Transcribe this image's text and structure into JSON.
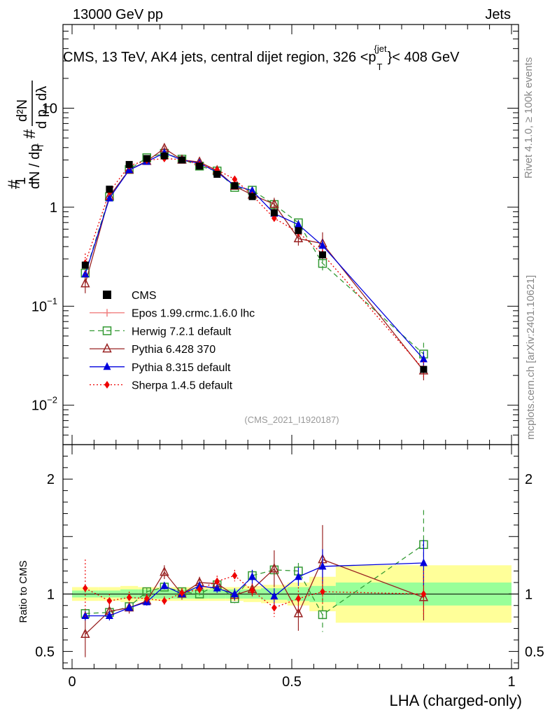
{
  "header": {
    "left": "13000 GeV pp",
    "right": "Jets",
    "title": "CMS, 13 TeV, AK4 jets, central dijet region, 326 <p",
    "title_sub": "T",
    "title_sup": "{jet",
    "title_end": "}< 408 GeV",
    "side_top": "Rivet 4.1.0, ≥ 100k events",
    "side_bottom": "mcplots.cern.ch [arXiv:2401.10621]",
    "analysis": "(CMS_2021_I1920187)"
  },
  "chart_data": {
    "type": "line",
    "xlabel": "LHA (charged-only)",
    "ylabel": "1/dN/dp_T # d²N/(dp_T dλ)",
    "ratio_ylabel": "Ratio to CMS",
    "xlim": [
      0,
      1
    ],
    "ylim": [
      0.004,
      70
    ],
    "ratio_ylim": [
      0.35,
      2.3
    ],
    "x_ticks": [
      {
        "v": 0,
        "label": "0"
      },
      {
        "v": 0.5,
        "label": "0.5"
      },
      {
        "v": 1,
        "label": "1"
      }
    ],
    "y_ticks": [
      {
        "v": 0.01,
        "base": "10",
        "exp": "−2"
      },
      {
        "v": 0.1,
        "base": "10",
        "exp": "−1"
      },
      {
        "v": 1,
        "base": "1",
        "exp": ""
      },
      {
        "v": 10,
        "base": "10",
        "exp": ""
      }
    ],
    "ratio_ticks": [
      {
        "v": 0.5,
        "label": "0.5"
      },
      {
        "v": 1,
        "label": "1"
      },
      {
        "v": 2,
        "label": "2"
      }
    ],
    "x": [
      0.03,
      0.085,
      0.13,
      0.17,
      0.21,
      0.25,
      0.29,
      0.33,
      0.37,
      0.41,
      0.46,
      0.515,
      0.57,
      0.8
    ],
    "bin_edges": [
      0,
      0.06,
      0.11,
      0.15,
      0.19,
      0.23,
      0.27,
      0.31,
      0.35,
      0.39,
      0.43,
      0.49,
      0.54,
      0.6,
      1
    ],
    "data": {
      "name": "CMS",
      "values": [
        0.26,
        1.52,
        2.7,
        3.1,
        3.3,
        3.0,
        2.6,
        2.15,
        1.65,
        1.28,
        0.88,
        0.58,
        0.33,
        0.023
      ],
      "band_stat": [
        0.03,
        0.03,
        0.04,
        0.04,
        0.04,
        0.04,
        0.04,
        0.04,
        0.04,
        0.04,
        0.05,
        0.06,
        0.07,
        0.1
      ],
      "band_total": [
        0.06,
        0.06,
        0.07,
        0.06,
        0.06,
        0.06,
        0.06,
        0.06,
        0.06,
        0.07,
        0.08,
        0.1,
        0.15,
        0.25
      ]
    },
    "series": [
      {
        "name": "Epos 1.99.crmc.1.6.0 lhc",
        "color": "#f08080",
        "marker": "plus",
        "dash": "",
        "ratio": [],
        "err": []
      },
      {
        "name": "Herwig 7.2.1 default",
        "color": "#339933",
        "marker": "square-open",
        "dash": "7,5",
        "ratio": [
          0.83,
          0.84,
          0.89,
          1.02,
          1.06,
          1.02,
          1.0,
          1.08,
          0.96,
          1.16,
          1.21,
          1.2,
          0.82,
          1.43
        ],
        "err": [
          0.04,
          0.03,
          0.03,
          0.03,
          0.03,
          0.03,
          0.03,
          0.04,
          0.04,
          0.05,
          0.05,
          0.07,
          0.15,
          0.3
        ]
      },
      {
        "name": "Pythia 6.428 370",
        "color": "#992222",
        "marker": "triangle-open",
        "dash": "",
        "ratio": [
          0.65,
          0.85,
          0.88,
          0.94,
          1.19,
          1.0,
          1.1,
          1.09,
          0.99,
          1.04,
          1.22,
          0.83,
          1.3,
          0.97
        ],
        "err": [
          0.2,
          0.06,
          0.05,
          0.04,
          0.06,
          0.05,
          0.05,
          0.05,
          0.05,
          0.06,
          0.16,
          0.15,
          0.3,
          0.2
        ]
      },
      {
        "name": "Pythia 8.315 default",
        "color": "#0000dd",
        "marker": "triangle",
        "dash": "",
        "ratio": [
          0.81,
          0.81,
          0.88,
          0.93,
          1.07,
          1.0,
          1.07,
          1.05,
          1.0,
          1.15,
          0.98,
          1.15,
          1.24,
          1.27
        ],
        "err": [
          0.04,
          0.04,
          0.03,
          0.03,
          0.03,
          0.03,
          0.03,
          0.04,
          0.05,
          0.06,
          0.07,
          0.08,
          0.15,
          0.2
        ]
      },
      {
        "name": "Sherpa 1.4.5 default",
        "color": "#ee0000",
        "marker": "diamond",
        "dash": "2,3",
        "ratio": [
          1.05,
          0.94,
          0.97,
          0.96,
          0.94,
          1.01,
          1.04,
          1.11,
          1.16,
          1.03,
          0.88,
          0.96,
          1.02,
          1.0
        ],
        "err": [
          0.25,
          0.06,
          0.05,
          0.04,
          0.04,
          0.04,
          0.04,
          0.05,
          0.05,
          0.06,
          0.08,
          0.1,
          0.12,
          0.2
        ]
      }
    ]
  }
}
